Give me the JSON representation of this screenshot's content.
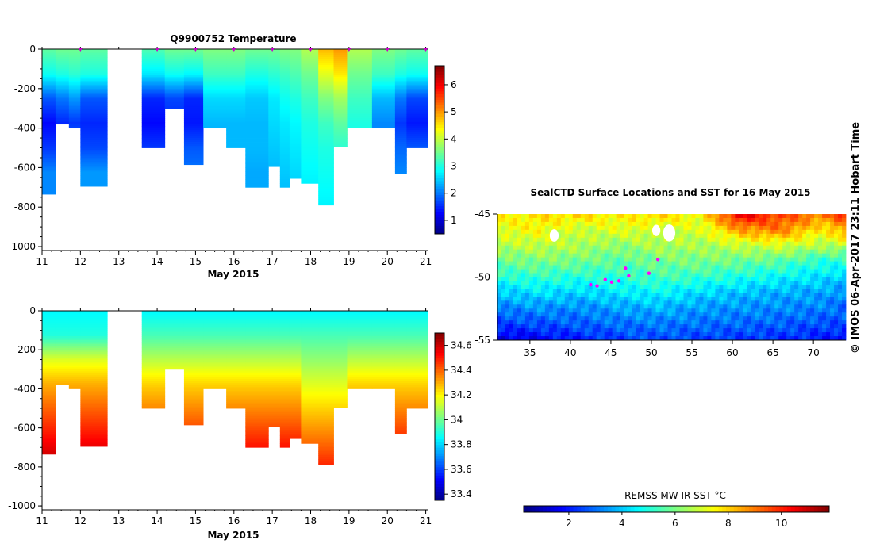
{
  "chart_data": [
    {
      "id": "temperature",
      "type": "heatmap",
      "title": "Q9900752  Temperature",
      "xlabel": "May 2015",
      "x_ticks": [
        "11",
        "12",
        "13",
        "14",
        "15",
        "16",
        "17",
        "18",
        "19",
        "20",
        "21"
      ],
      "xlim": [
        11,
        21.05
      ],
      "y_ticks": [
        "0",
        "-200",
        "-400",
        "-600",
        "-800",
        "-1000"
      ],
      "ylim": [
        -1020,
        0
      ],
      "colorbar_ticks": [
        "1",
        "2",
        "3",
        "4",
        "5",
        "6"
      ],
      "colorbar_range": [
        0.5,
        6.7
      ],
      "colormap": "jet",
      "profile_markers": [
        12,
        14,
        15,
        16,
        17,
        18,
        19,
        20,
        21
      ],
      "profiles": [
        {
          "t0": 11.0,
          "t1": 11.35,
          "maxdepth": 735,
          "values": [
            3.4,
            2.9,
            1.8,
            1.3,
            1.6,
            2.1,
            2.1,
            2.2,
            2.2
          ]
        },
        {
          "t0": 11.35,
          "t1": 11.7,
          "maxdepth": 380,
          "values": [
            3.5,
            3.0,
            2.0,
            1.5,
            1.9,
            2.2,
            2.2,
            2.2,
            2.2
          ]
        },
        {
          "t0": 11.7,
          "t1": 12.0,
          "maxdepth": 400,
          "values": [
            3.5,
            3.1,
            2.2,
            1.6,
            2.0,
            2.2,
            2.2,
            2.2,
            2.2
          ]
        },
        {
          "t0": 12.0,
          "t1": 12.7,
          "maxdepth": 695,
          "values": [
            3.4,
            3.0,
            1.8,
            1.5,
            1.7,
            2.2,
            2.2,
            2.2,
            2.2
          ]
        },
        {
          "t0": 13.6,
          "t1": 14.2,
          "maxdepth": 500,
          "values": [
            3.3,
            2.7,
            1.5,
            1.3,
            1.6,
            2.1,
            2.1,
            2.2,
            2.2
          ]
        },
        {
          "t0": 14.2,
          "t1": 14.7,
          "maxdepth": 300,
          "values": [
            3.5,
            2.9,
            1.7,
            1.5,
            1.8,
            2.1,
            2.2,
            2.2,
            2.2
          ]
        },
        {
          "t0": 14.7,
          "t1": 15.2,
          "maxdepth": 585,
          "values": [
            3.5,
            2.8,
            1.5,
            1.4,
            1.8,
            2.0,
            2.1,
            2.2,
            2.2
          ]
        },
        {
          "t0": 15.2,
          "t1": 15.8,
          "maxdepth": 400,
          "values": [
            3.6,
            3.2,
            2.6,
            2.4,
            2.3,
            2.3,
            2.2,
            2.2,
            2.2
          ]
        },
        {
          "t0": 15.8,
          "t1": 16.3,
          "maxdepth": 500,
          "values": [
            3.6,
            3.2,
            2.6,
            2.4,
            2.4,
            2.3,
            2.3,
            2.2,
            2.2
          ]
        },
        {
          "t0": 16.3,
          "t1": 16.9,
          "maxdepth": 700,
          "values": [
            3.5,
            3.0,
            2.5,
            2.4,
            2.4,
            2.3,
            2.3,
            2.2,
            2.2
          ]
        },
        {
          "t0": 16.9,
          "t1": 17.2,
          "maxdepth": 595,
          "values": [
            3.5,
            3.1,
            2.7,
            2.6,
            2.5,
            2.4,
            2.3,
            2.3,
            2.2
          ]
        },
        {
          "t0": 17.2,
          "t1": 17.45,
          "maxdepth": 700,
          "values": [
            3.6,
            3.2,
            2.9,
            2.7,
            2.6,
            2.5,
            2.4,
            2.3,
            2.2
          ]
        },
        {
          "t0": 17.45,
          "t1": 17.75,
          "maxdepth": 655,
          "values": [
            3.6,
            3.3,
            3.0,
            2.8,
            2.7,
            2.6,
            2.5,
            2.4,
            2.3
          ]
        },
        {
          "t0": 17.75,
          "t1": 18.2,
          "maxdepth": 680,
          "values": [
            3.9,
            3.5,
            3.2,
            3.0,
            2.9,
            2.8,
            2.7,
            2.6,
            2.5
          ]
        },
        {
          "t0": 18.2,
          "t1": 18.6,
          "maxdepth": 790,
          "values": [
            4.8,
            4.2,
            3.6,
            3.2,
            3.0,
            2.9,
            2.8,
            2.7,
            2.6
          ]
        },
        {
          "t0": 18.6,
          "t1": 18.95,
          "maxdepth": 495,
          "values": [
            5.0,
            4.5,
            3.8,
            3.4,
            3.1,
            3.0,
            2.9,
            2.8,
            2.7
          ]
        },
        {
          "t0": 18.95,
          "t1": 19.6,
          "maxdepth": 400,
          "values": [
            3.9,
            3.5,
            3.2,
            3.0,
            2.9,
            2.8,
            2.7,
            2.6,
            2.5
          ]
        },
        {
          "t0": 19.6,
          "t1": 20.2,
          "maxdepth": 400,
          "values": [
            3.6,
            3.2,
            2.4,
            2.1,
            2.1,
            2.2,
            2.2,
            2.2,
            2.2
          ]
        },
        {
          "t0": 20.2,
          "t1": 20.5,
          "maxdepth": 630,
          "values": [
            3.5,
            3.0,
            2.0,
            1.6,
            1.9,
            2.1,
            2.2,
            2.2,
            2.2
          ]
        },
        {
          "t0": 20.5,
          "t1": 21.05,
          "maxdepth": 500,
          "values": [
            3.4,
            2.9,
            1.7,
            1.4,
            1.8,
            2.1,
            2.2,
            2.2,
            2.2
          ]
        }
      ]
    },
    {
      "id": "salinity",
      "type": "heatmap",
      "title": "",
      "xlabel": "May 2015",
      "x_ticks": [
        "11",
        "12",
        "13",
        "14",
        "15",
        "16",
        "17",
        "18",
        "19",
        "20",
        "21"
      ],
      "xlim": [
        11,
        21.05
      ],
      "y_ticks": [
        "0",
        "-200",
        "-400",
        "-600",
        "-800",
        "-1000"
      ],
      "ylim": [
        -1020,
        0
      ],
      "colorbar_ticks": [
        "33.4",
        "33.6",
        "33.8",
        "34",
        "34.2",
        "34.4",
        "34.6"
      ],
      "colorbar_range": [
        33.35,
        34.7
      ],
      "colormap": "jet",
      "profiles": [
        {
          "t0": 11.0,
          "t1": 11.35,
          "maxdepth": 735,
          "values": [
            33.85,
            33.9,
            34.15,
            34.3,
            34.4,
            34.5,
            34.6,
            34.65,
            34.68
          ]
        },
        {
          "t0": 11.35,
          "t1": 11.7,
          "maxdepth": 380,
          "values": [
            33.85,
            33.9,
            34.15,
            34.3,
            34.4,
            34.5,
            34.6,
            34.65,
            34.68
          ]
        },
        {
          "t0": 11.7,
          "t1": 12.0,
          "maxdepth": 400,
          "values": [
            33.85,
            33.9,
            34.15,
            34.3,
            34.4,
            34.5,
            34.6,
            34.65,
            34.68
          ]
        },
        {
          "t0": 12.0,
          "t1": 12.7,
          "maxdepth": 695,
          "values": [
            33.85,
            33.9,
            34.15,
            34.3,
            34.4,
            34.5,
            34.6,
            34.65,
            34.68
          ]
        },
        {
          "t0": 13.6,
          "t1": 14.2,
          "maxdepth": 500,
          "values": [
            33.85,
            33.95,
            34.1,
            34.25,
            34.35,
            34.45,
            34.55,
            34.6,
            34.65
          ]
        },
        {
          "t0": 14.2,
          "t1": 14.7,
          "maxdepth": 300,
          "values": [
            33.85,
            33.95,
            34.1,
            34.25,
            34.35,
            34.45,
            34.55,
            34.6,
            34.65
          ]
        },
        {
          "t0": 14.7,
          "t1": 15.2,
          "maxdepth": 585,
          "values": [
            33.85,
            33.95,
            34.1,
            34.25,
            34.35,
            34.45,
            34.55,
            34.6,
            34.65
          ]
        },
        {
          "t0": 15.2,
          "t1": 15.8,
          "maxdepth": 400,
          "values": [
            33.85,
            33.95,
            34.1,
            34.25,
            34.35,
            34.45,
            34.55,
            34.6,
            34.65
          ]
        },
        {
          "t0": 15.8,
          "t1": 16.3,
          "maxdepth": 500,
          "values": [
            33.85,
            33.95,
            34.1,
            34.25,
            34.35,
            34.45,
            34.55,
            34.6,
            34.65
          ]
        },
        {
          "t0": 16.3,
          "t1": 16.9,
          "maxdepth": 700,
          "values": [
            33.85,
            33.95,
            34.1,
            34.25,
            34.35,
            34.45,
            34.55,
            34.6,
            34.65
          ]
        },
        {
          "t0": 16.9,
          "t1": 17.2,
          "maxdepth": 595,
          "values": [
            33.85,
            33.95,
            34.1,
            34.25,
            34.35,
            34.45,
            34.55,
            34.6,
            34.65
          ]
        },
        {
          "t0": 17.2,
          "t1": 17.45,
          "maxdepth": 700,
          "values": [
            33.85,
            33.95,
            34.1,
            34.25,
            34.35,
            34.45,
            34.55,
            34.6,
            34.65
          ]
        },
        {
          "t0": 17.45,
          "t1": 17.75,
          "maxdepth": 655,
          "values": [
            33.85,
            33.95,
            34.1,
            34.25,
            34.35,
            34.45,
            34.55,
            34.6,
            34.65
          ]
        },
        {
          "t0": 17.75,
          "t1": 18.2,
          "maxdepth": 680,
          "values": [
            33.85,
            33.95,
            34.05,
            34.15,
            34.25,
            34.35,
            34.45,
            34.55,
            34.6
          ]
        },
        {
          "t0": 18.2,
          "t1": 18.6,
          "maxdepth": 790,
          "values": [
            33.85,
            33.95,
            34.05,
            34.15,
            34.25,
            34.35,
            34.45,
            34.55,
            34.6
          ]
        },
        {
          "t0": 18.6,
          "t1": 18.95,
          "maxdepth": 495,
          "values": [
            33.85,
            33.95,
            34.05,
            34.15,
            34.25,
            34.35,
            34.45,
            34.55,
            34.6
          ]
        },
        {
          "t0": 18.95,
          "t1": 19.6,
          "maxdepth": 400,
          "values": [
            33.85,
            33.95,
            34.1,
            34.25,
            34.35,
            34.45,
            34.55,
            34.6,
            34.65
          ]
        },
        {
          "t0": 19.6,
          "t1": 20.2,
          "maxdepth": 400,
          "values": [
            33.85,
            33.95,
            34.1,
            34.25,
            34.35,
            34.45,
            34.55,
            34.6,
            34.65
          ]
        },
        {
          "t0": 20.2,
          "t1": 20.5,
          "maxdepth": 630,
          "values": [
            33.85,
            33.95,
            34.1,
            34.25,
            34.35,
            34.45,
            34.55,
            34.6,
            34.65
          ]
        },
        {
          "t0": 20.5,
          "t1": 21.05,
          "maxdepth": 500,
          "values": [
            33.85,
            33.95,
            34.1,
            34.25,
            34.35,
            34.45,
            34.55,
            34.6,
            34.65
          ]
        }
      ]
    },
    {
      "id": "sst_map",
      "type": "heatmap",
      "title": "SealCTD Surface Locations and SST for 16 May 2015",
      "x_ticks": [
        "35",
        "40",
        "45",
        "50",
        "55",
        "60",
        "65",
        "70"
      ],
      "xlim": [
        31,
        74
      ],
      "y_ticks": [
        "-45",
        "-50",
        "-55"
      ],
      "ylim": [
        -55,
        -45
      ],
      "colorbar_label": "REMSS MW-IR SST °C",
      "colorbar_ticks": [
        "2",
        "4",
        "6",
        "8",
        "10"
      ],
      "colorbar_range": [
        0.3,
        11.8
      ],
      "colormap": "jet",
      "sst_grid_lon": [
        31,
        36,
        41,
        46,
        51,
        56,
        61,
        66,
        71,
        74
      ],
      "sst_grid_lat": [
        -45,
        -46.25,
        -47.5,
        -48.75,
        -50,
        -51.25,
        -52.5,
        -53.75,
        -55
      ],
      "sst_grid": [
        [
          7.5,
          7.8,
          8.0,
          7.6,
          8.0,
          7.4,
          10.8,
          9.6,
          9.0,
          10.0
        ],
        [
          7.2,
          7.5,
          6.8,
          7.2,
          7.0,
          7.0,
          8.6,
          9.0,
          7.6,
          8.6
        ],
        [
          6.6,
          6.8,
          6.6,
          6.2,
          6.6,
          6.5,
          6.8,
          7.0,
          6.6,
          6.8
        ],
        [
          5.8,
          6.0,
          5.9,
          5.6,
          5.9,
          6.0,
          5.8,
          5.6,
          5.0,
          5.0
        ],
        [
          5.0,
          5.2,
          5.0,
          5.1,
          5.4,
          5.2,
          4.9,
          4.6,
          4.3,
          4.1
        ],
        [
          4.0,
          4.3,
          4.1,
          4.4,
          4.6,
          4.2,
          3.9,
          3.7,
          3.6,
          3.3
        ],
        [
          3.2,
          3.4,
          3.3,
          3.6,
          3.8,
          3.5,
          3.4,
          3.3,
          3.2,
          2.9
        ],
        [
          2.4,
          2.6,
          2.8,
          3.0,
          3.1,
          3.0,
          2.9,
          2.8,
          2.6,
          2.5
        ],
        [
          1.3,
          1.6,
          2.0,
          2.4,
          2.6,
          2.4,
          2.3,
          2.2,
          2.0,
          1.8
        ]
      ],
      "land_patches": [
        {
          "lon": 38.0,
          "lat": -46.7,
          "r": 0.55
        },
        {
          "lon": 50.6,
          "lat": -46.3,
          "r": 0.5
        },
        {
          "lon": 52.2,
          "lat": -46.5,
          "r": 0.75
        }
      ],
      "ctd_locations": [
        {
          "lon": 42.5,
          "lat": -50.6
        },
        {
          "lon": 43.3,
          "lat": -50.7
        },
        {
          "lon": 44.3,
          "lat": -50.2
        },
        {
          "lon": 45.1,
          "lat": -50.4
        },
        {
          "lon": 46.0,
          "lat": -50.3
        },
        {
          "lon": 47.2,
          "lat": -49.9
        },
        {
          "lon": 49.7,
          "lat": -49.7
        },
        {
          "lon": 50.8,
          "lat": -48.6
        },
        {
          "lon": 46.8,
          "lat": -49.3
        }
      ]
    }
  ],
  "footer_credit": "© IMOS 06-Apr-2017 23:11 Hobart Time",
  "colors": {
    "profile_marker": "#cc00cc",
    "ctd_location": "#ff00ff",
    "land": "#ffffff"
  }
}
